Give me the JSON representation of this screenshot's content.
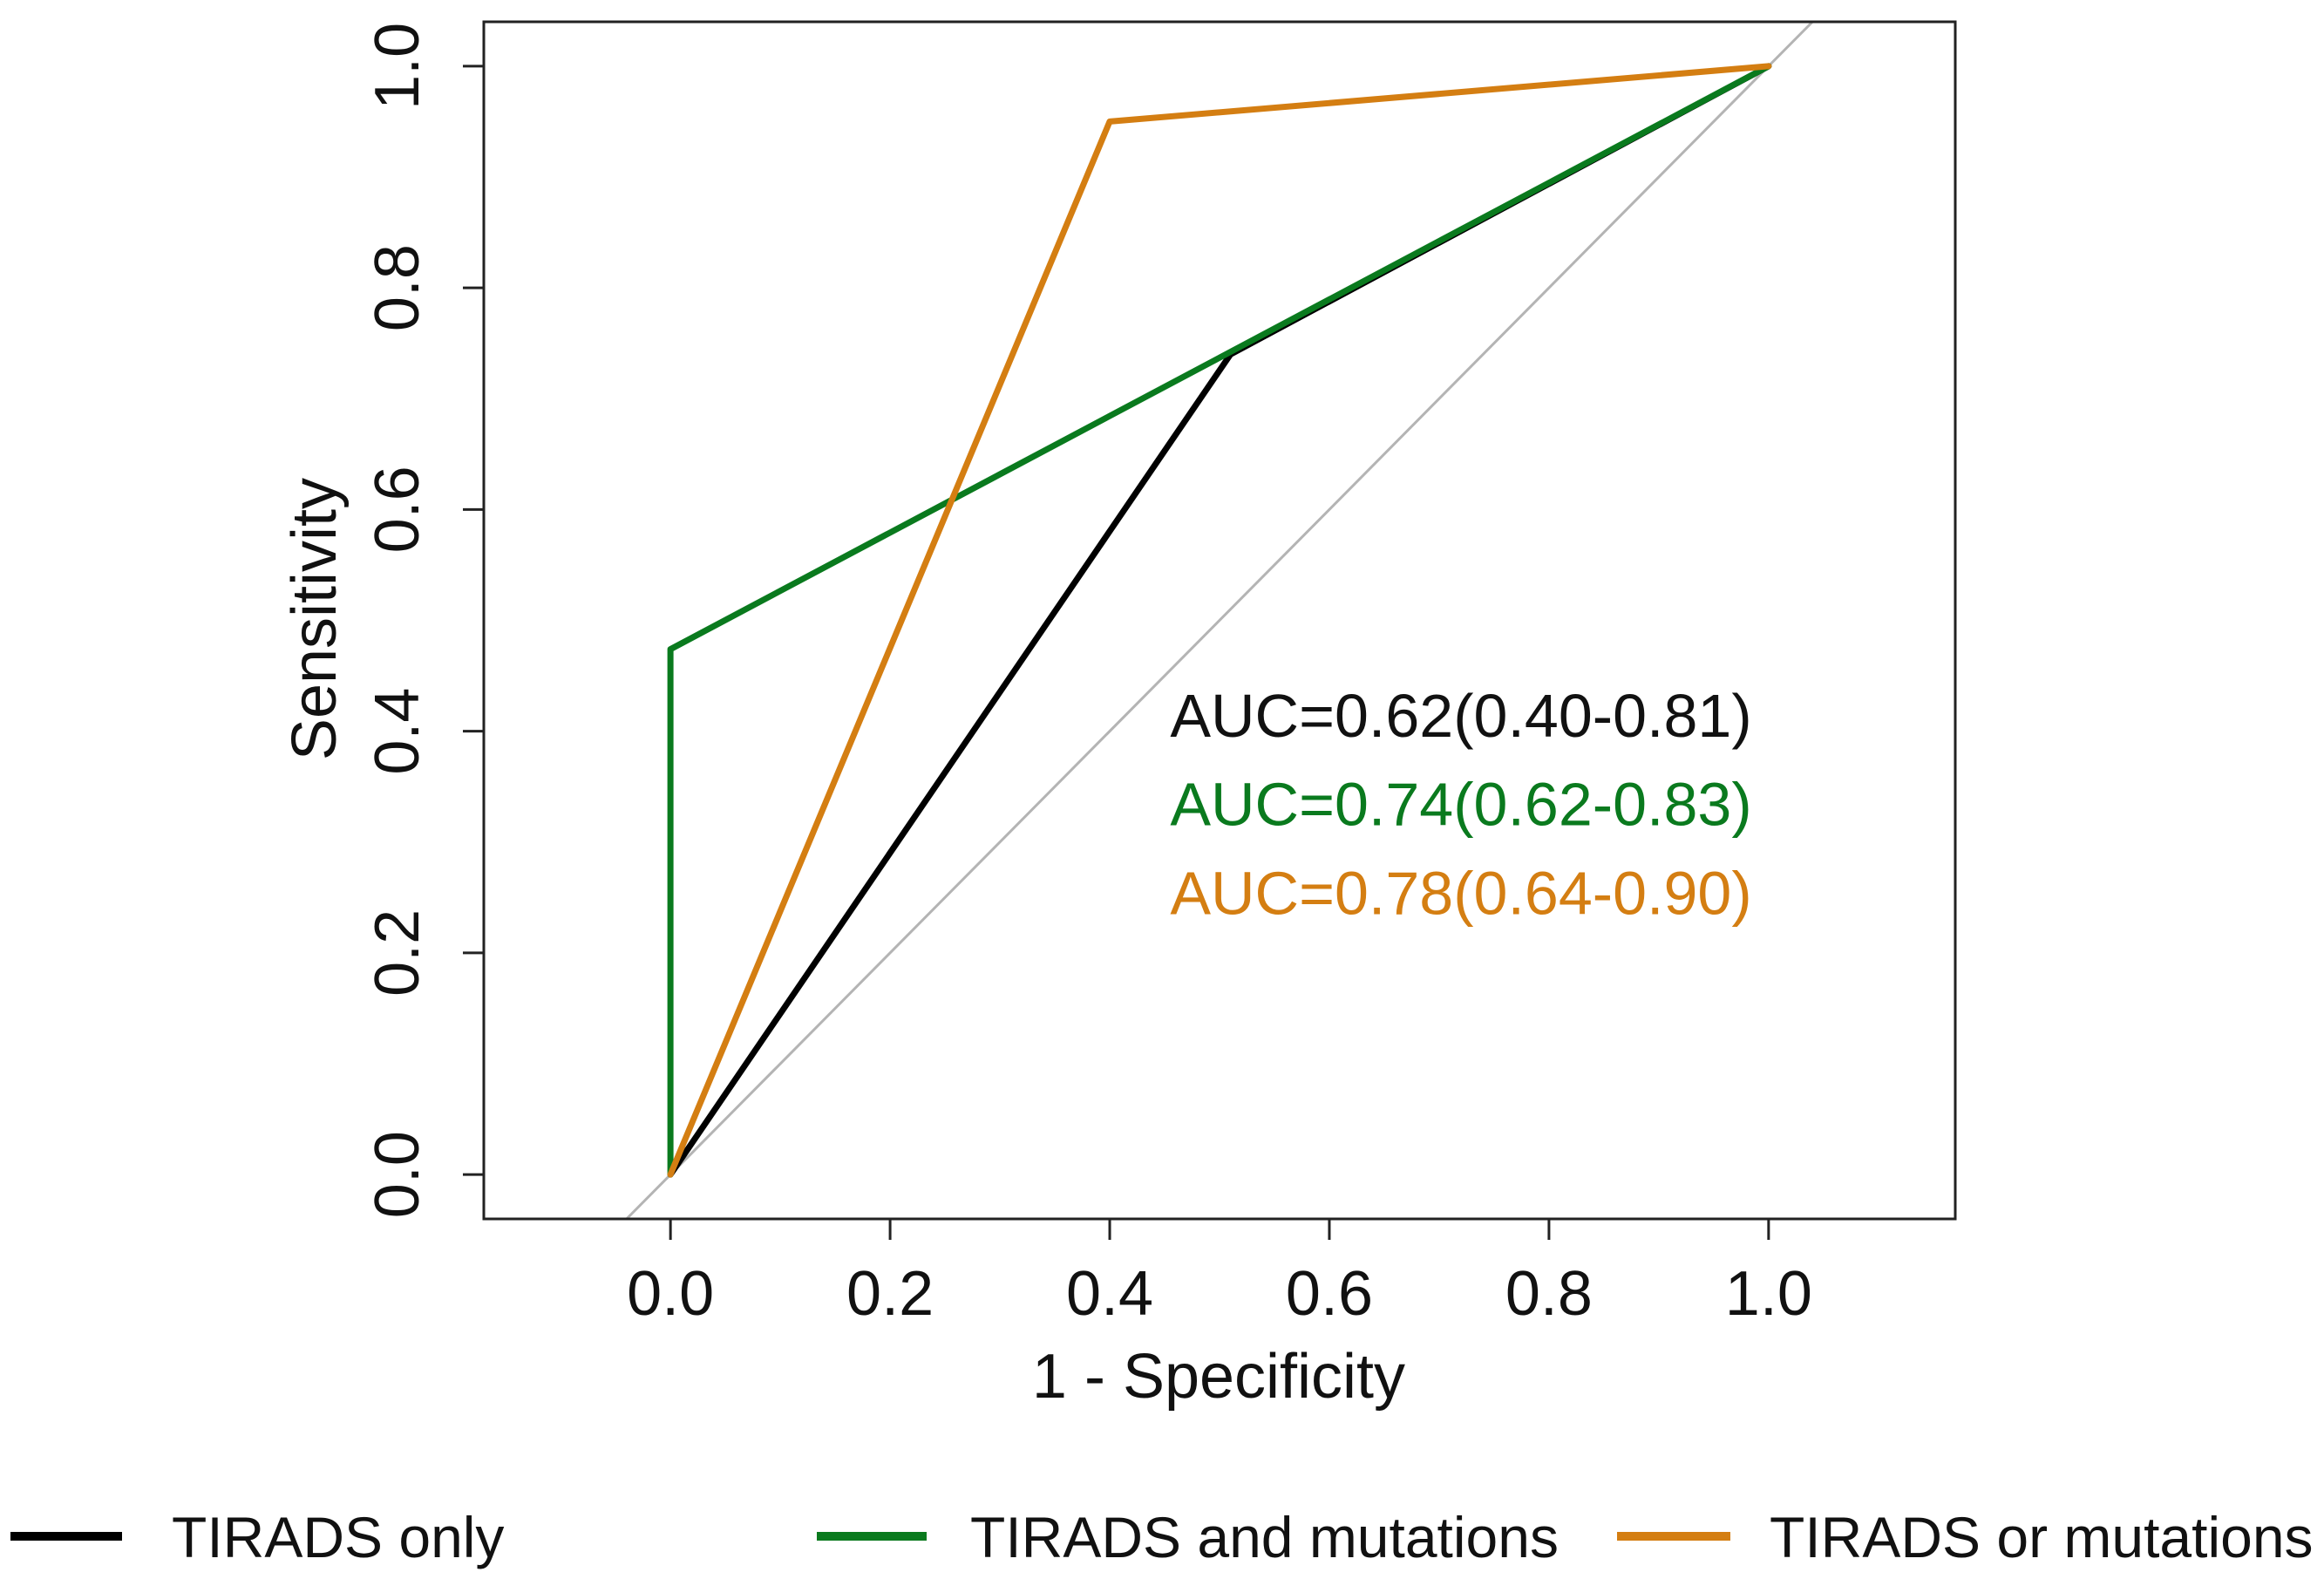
{
  "chart_data": {
    "type": "line",
    "title": "",
    "xlabel": "1 - Specificity",
    "ylabel": "Sensitivity",
    "xlim": [
      -0.17,
      1.17
    ],
    "ylim": [
      -0.04,
      1.04
    ],
    "x_ticks": [
      "0.0",
      "0.2",
      "0.4",
      "0.6",
      "0.8",
      "1.0"
    ],
    "y_ticks": [
      "0.0",
      "0.2",
      "0.4",
      "0.6",
      "0.8",
      "1.0"
    ],
    "grid": false,
    "reference_line": {
      "x": [
        -0.04,
        1.04
      ],
      "y": [
        -0.04,
        1.04
      ],
      "color": "#b4b4b4"
    },
    "series": [
      {
        "name": "TIRADS only",
        "color": "#000000",
        "x": [
          0,
          0.51,
          1.0
        ],
        "y": [
          0,
          0.74,
          1.0
        ]
      },
      {
        "name": "TIRADS and mutations",
        "color": "#0a7a1e",
        "x": [
          0,
          0,
          1.0
        ],
        "y": [
          0,
          0.474,
          1.0
        ]
      },
      {
        "name": "TIRADS or mutations",
        "color": "#d47e12",
        "x": [
          0,
          0.4,
          1.0
        ],
        "y": [
          0,
          0.95,
          1.0
        ]
      }
    ],
    "annotations": [
      {
        "text": "AUC=0.62(0.40-0.81)",
        "color": "#111111",
        "x": 0.455,
        "y": 0.395
      },
      {
        "text": "AUC=0.74(0.62-0.83)",
        "color": "#0a7a1e",
        "x": 0.455,
        "y": 0.315
      },
      {
        "text": "AUC=0.78(0.64-0.90)",
        "color": "#d47e12",
        "x": 0.455,
        "y": 0.235
      }
    ],
    "legend": {
      "placement": "bottom",
      "entries": [
        "TIRADS only",
        "TIRADS and mutations",
        "TIRADS or mutations"
      ]
    }
  }
}
